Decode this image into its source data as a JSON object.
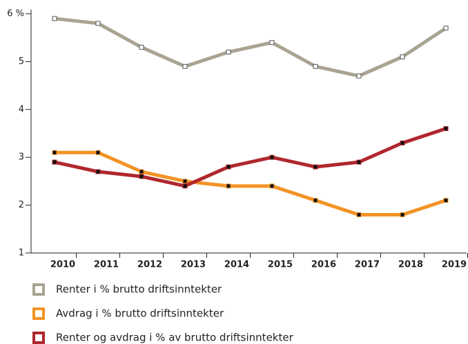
{
  "chart_data": {
    "type": "line",
    "categories": [
      "2010",
      "2011",
      "2012",
      "2013",
      "2014",
      "2015",
      "2016",
      "2017",
      "2018",
      "2019"
    ],
    "series": [
      {
        "name": "Renter i % brutto driftsinntekter",
        "color": "#a9a492",
        "values": [
          5.9,
          5.8,
          5.3,
          4.9,
          5.2,
          5.4,
          4.9,
          4.7,
          5.1,
          5.7
        ]
      },
      {
        "name": "Avdrag i % brutto driftsinntekter",
        "color": "#f39325",
        "values": [
          3.1,
          3.1,
          2.7,
          2.5,
          2.4,
          2.4,
          2.1,
          1.8,
          1.8,
          2.1
        ]
      },
      {
        "name": "Renter og avdrag i % av brutto driftsinntekter",
        "color": "#b0272d",
        "values": [
          2.9,
          2.7,
          2.6,
          2.4,
          2.8,
          3.0,
          2.8,
          2.9,
          3.3,
          3.6
        ]
      }
    ],
    "ylim": [
      1,
      6
    ],
    "yticks": [
      1,
      2,
      3,
      4,
      5,
      {
        "value": 6,
        "label": "6 %"
      }
    ]
  }
}
